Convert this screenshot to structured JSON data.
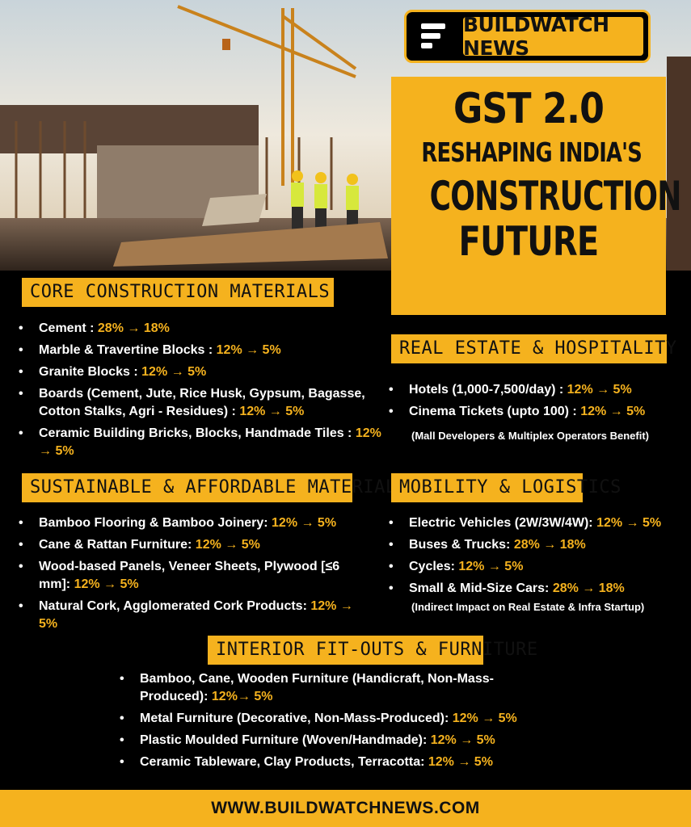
{
  "brand": {
    "name": "BUILDWATCH NEWS",
    "logo_icon": "bars-logo-icon"
  },
  "headline": {
    "line1": "GST 2.0",
    "line2": "RESHAPING INDIA'S",
    "line3": "CONSTRUCTION",
    "line4": "FUTURE"
  },
  "colors": {
    "accent": "#f5b21e",
    "background": "#000000",
    "text": "#ffffff"
  },
  "core": {
    "title": "CORE CONSTRUCTION MATERIALS",
    "items": [
      {
        "label": "Cement : ",
        "value": "28%  → 18%"
      },
      {
        "label": "Marble & Travertine Blocks : ",
        "value": "12% → 5%"
      },
      {
        "label": "Granite Blocks : ",
        "value": "12% → 5%"
      },
      {
        "label": "Boards (Cement, Jute, Rice Husk, Gypsum, Bagasse, Cotton Stalks, Agri - Residues) : ",
        "value": "12% → 5%"
      },
      {
        "label": "Ceramic Building Bricks, Blocks, Handmade Tiles : ",
        "value": "12% → 5%"
      }
    ]
  },
  "sustainable": {
    "title": "SUSTAINABLE & AFFORDABLE MATERIALS",
    "items": [
      {
        "label": "Bamboo Flooring & Bamboo Joinery: ",
        "value": "12% → 5%"
      },
      {
        "label": "Cane & Rattan Furniture: ",
        "value": "12%  →  5%"
      },
      {
        "label": "Wood-based Panels, Veneer Sheets, Plywood [≤6 mm]: ",
        "value": "12%  →  5%"
      },
      {
        "label": "Natural Cork, Agglomerated Cork Products: ",
        "value": "12%  →  5%"
      }
    ]
  },
  "realestate": {
    "title": "REAL ESTATE & HOSPITALITY",
    "items": [
      {
        "label": "Hotels (1,000-7,500/day) : ",
        "value": "12%  →  5%"
      },
      {
        "label": "Cinema Tickets (upto 100) : ",
        "value": "12%  → 5%"
      }
    ],
    "note": "(Mall Developers & Multiplex Operators Benefit)"
  },
  "mobility": {
    "title": "MOBILITY & LOGISTICS",
    "items": [
      {
        "label": "Electric Vehicles (2W/3W/4W): ",
        "value": "12% → 5%"
      },
      {
        "label": "Buses & Trucks: ",
        "value": "28% → 18%"
      },
      {
        "label": "Cycles: ",
        "value": "12% → 5%"
      },
      {
        "label": "Small & Mid-Size Cars: ",
        "value": "28% → 18%"
      }
    ],
    "note": "(Indirect Impact on Real Estate & Infra Startup)"
  },
  "interior": {
    "title": "INTERIOR FIT-OUTS & FURNITURE",
    "items": [
      {
        "label": "Bamboo, Cane, Wooden Furniture (Handicraft, Non-Mass-Produced): ",
        "value": "12%→ 5%"
      },
      {
        "label": "Metal Furniture (Decorative, Non-Mass-Produced): ",
        "value": "12% → 5%"
      },
      {
        "label": "Plastic Moulded Furniture (Woven/Handmade): ",
        "value": "12% → 5%"
      },
      {
        "label": "Ceramic Tableware, Clay Products, Terracotta: ",
        "value": "12% → 5%"
      }
    ]
  },
  "footer": {
    "url": "WWW.BUILDWATCHNEWS.COM"
  }
}
